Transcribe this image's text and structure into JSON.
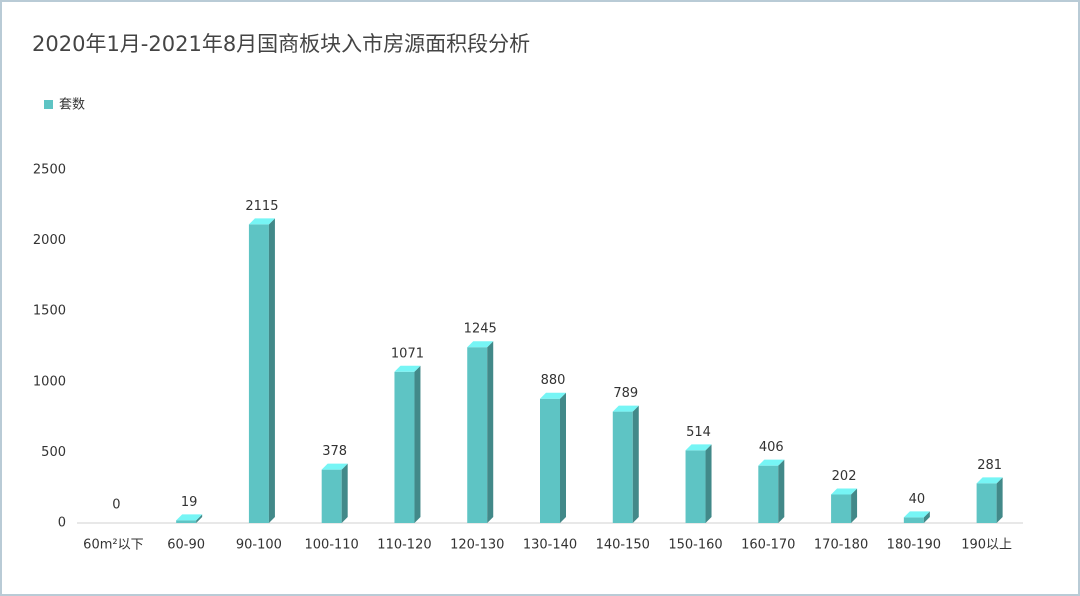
{
  "chart_data": {
    "type": "bar3d",
    "title": "2020年1月-2021年8月国商板块入市房源面积段分析",
    "categories": [
      "60m²以下",
      "60-90",
      "90-100",
      "100-110",
      "110-120",
      "120-130",
      "130-140",
      "140-150",
      "150-160",
      "160-170",
      "170-180",
      "180-190",
      "190以上"
    ],
    "series": [
      {
        "name": "套数",
        "color": "#5ec4c4",
        "values": [
          0,
          19,
          2115,
          378,
          1071,
          1245,
          880,
          789,
          514,
          406,
          202,
          40,
          281
        ]
      }
    ],
    "ylim": [
      0,
      2500
    ],
    "yticks": [
      0,
      500,
      1000,
      1500,
      2000,
      2500
    ],
    "grid": false,
    "legend": "top-left"
  }
}
